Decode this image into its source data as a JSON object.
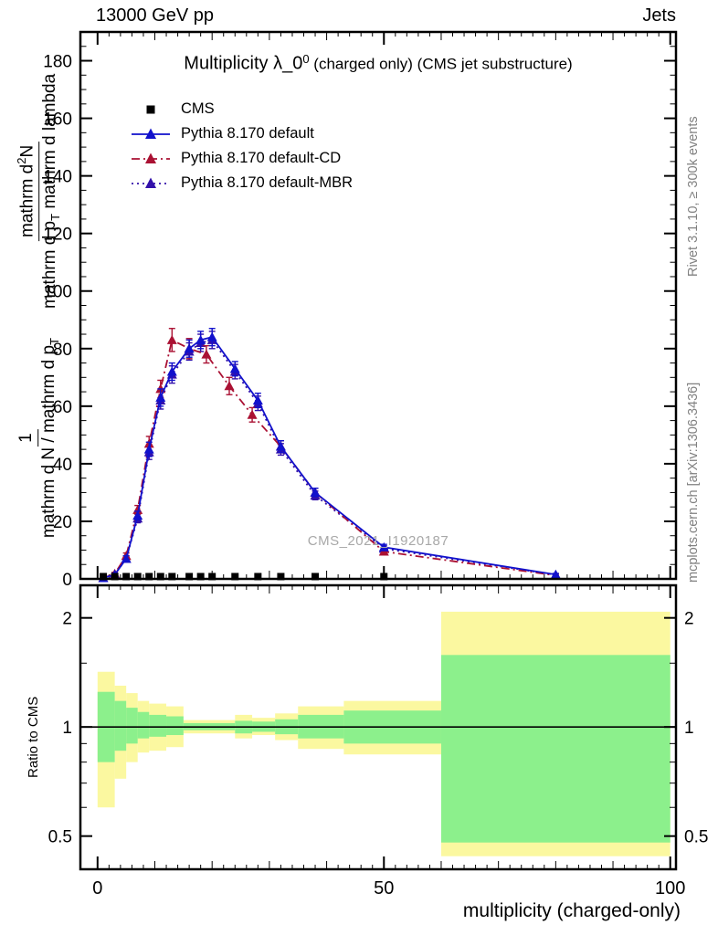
{
  "header": {
    "left_label": "13000 GeV pp",
    "right_label": "Jets"
  },
  "title": {
    "prefix": "Multiplicity λ_0",
    "sup": "0",
    "suffix": " (charged only) (CMS jet substructure)"
  },
  "watermark": "CMS_2021_I1920187",
  "side_notes": {
    "top_right": "Rivet 3.1.10, ≥ 300k events",
    "bottom_right": "mcplots.cern.ch [arXiv:1306.3436]"
  },
  "ylabel": {
    "frac1_num": "1",
    "frac1_den_main": "mathrm d N / mathrm d p",
    "frac1_den_sub": "T",
    "frac2_num_a": "mathrm d",
    "frac2_num_sup": "2",
    "frac2_num_b": "N",
    "frac2_den_a": "mathrm d p",
    "frac2_den_sub": "T",
    "frac2_den_b": " mathrm d lambda"
  },
  "axes": {
    "x_label": "multiplicity (charged-only)",
    "ratio_label": "Ratio to CMS"
  },
  "legend": [
    {
      "label": "CMS",
      "marker": "square",
      "line": null,
      "color": "#000000"
    },
    {
      "label": "Pythia 8.170 default",
      "marker": "triangle",
      "line": "solid",
      "color": "#1111cc"
    },
    {
      "label": "Pythia 8.170 default-CD",
      "marker": "triangle",
      "line": "dashdot",
      "color": "#aa1133"
    },
    {
      "label": "Pythia 8.170 default-MBR",
      "marker": "triangle",
      "line": "dotted",
      "color": "#3311aa"
    }
  ],
  "chart_data": [
    {
      "type": "line",
      "title": "Multiplicity λ_0^0 (charged only) (CMS jet substructure)",
      "xlabel": "multiplicity (charged-only)",
      "ylabel": "1/(mathrm dN/mathrm dp_T) mathrm d2N/(mathrm dp_T mathrm d lambda)",
      "xlim": [
        -3,
        101
      ],
      "ylim": [
        0,
        190
      ],
      "x_major_ticks": [
        0,
        50,
        100
      ],
      "y_major_ticks": [
        0,
        20,
        40,
        60,
        80,
        100,
        120,
        140,
        160,
        180
      ],
      "legend_position": "top-left",
      "grid": false,
      "series": [
        {
          "name": "Pythia 8.170 default-MBR",
          "marker": "triangle",
          "line": "dotted",
          "color": "#3311aa",
          "x": [
            1,
            3,
            5,
            7,
            9,
            11,
            13,
            16,
            18,
            20,
            24,
            28,
            32,
            38,
            50,
            80
          ],
          "y": [
            0.3,
            1.5,
            7,
            21,
            44,
            62,
            71,
            79,
            82,
            83,
            72,
            61,
            45,
            29,
            10.5,
            1.4
          ],
          "yerr": [
            0.2,
            0.5,
            1,
            1.5,
            2.5,
            3,
            3,
            3,
            3,
            3,
            2.5,
            2.5,
            2,
            1.5,
            1,
            0.4
          ]
        },
        {
          "name": "Pythia 8.170 default-CD",
          "marker": "triangle",
          "line": "dashdot",
          "color": "#aa1133",
          "x": [
            1,
            3,
            5,
            7,
            9,
            11,
            13,
            16,
            19,
            23,
            27,
            32,
            38,
            50,
            80
          ],
          "y": [
            0.3,
            1.8,
            8,
            24,
            47,
            66,
            83,
            80,
            78,
            67,
            57,
            46,
            30,
            9.5,
            1.2
          ],
          "yerr": [
            0.2,
            0.5,
            1,
            1.5,
            2.5,
            3,
            4,
            3.5,
            3,
            3,
            2.5,
            2,
            1.5,
            1,
            0.4
          ]
        },
        {
          "name": "Pythia 8.170 default",
          "marker": "triangle",
          "line": "solid",
          "color": "#1111cc",
          "x": [
            1,
            3,
            5,
            7,
            9,
            11,
            13,
            16,
            18,
            20,
            24,
            28,
            32,
            38,
            50,
            80
          ],
          "y": [
            0.3,
            1.5,
            7,
            22,
            45,
            63,
            72,
            80,
            83,
            84,
            73,
            62,
            46,
            30,
            11,
            1.5
          ],
          "yerr": [
            0.2,
            0.5,
            1,
            1.5,
            2.5,
            3,
            3,
            3,
            3,
            3,
            2.5,
            2.5,
            2,
            1.5,
            1,
            0.4
          ]
        },
        {
          "name": "CMS",
          "marker": "square",
          "line": null,
          "color": "#000000",
          "x": [
            1,
            3,
            5,
            7,
            9,
            11,
            13,
            16,
            18,
            20,
            24,
            28,
            32,
            38,
            50
          ],
          "y": [
            0.8,
            0.8,
            0.8,
            0.8,
            0.8,
            0.8,
            0.8,
            0.8,
            0.8,
            0.8,
            0.8,
            0.8,
            0.8,
            0.8,
            0.8
          ]
        }
      ]
    },
    {
      "type": "ratio",
      "ylabel": "Ratio to CMS",
      "yscale": "log",
      "ylim": [
        0.405,
        2.46
      ],
      "y_ticks": [
        0.5,
        1,
        2
      ],
      "y_minor_ticks": [
        0.5,
        0.6,
        0.7,
        0.8,
        0.9,
        1,
        1.5,
        2
      ],
      "reference_line": 1,
      "band_colors": {
        "outer": "#fbf8a0",
        "inner": "#8cf08c"
      },
      "bands": [
        {
          "x0": 0,
          "x1": 3,
          "outer": [
            0.6,
            1.42
          ],
          "inner": [
            0.8,
            1.25
          ]
        },
        {
          "x0": 3,
          "x1": 5,
          "outer": [
            0.72,
            1.3
          ],
          "inner": [
            0.86,
            1.18
          ]
        },
        {
          "x0": 5,
          "x1": 7,
          "outer": [
            0.8,
            1.24
          ],
          "inner": [
            0.9,
            1.13
          ]
        },
        {
          "x0": 7,
          "x1": 9,
          "outer": [
            0.85,
            1.18
          ],
          "inner": [
            0.93,
            1.1
          ]
        },
        {
          "x0": 9,
          "x1": 12,
          "outer": [
            0.86,
            1.16
          ],
          "inner": [
            0.94,
            1.08
          ]
        },
        {
          "x0": 12,
          "x1": 15,
          "outer": [
            0.88,
            1.14
          ],
          "inner": [
            0.95,
            1.07
          ]
        },
        {
          "x0": 15,
          "x1": 24,
          "outer": [
            0.96,
            1.045
          ],
          "inner": [
            0.98,
            1.025
          ]
        },
        {
          "x0": 24,
          "x1": 27,
          "outer": [
            0.93,
            1.08
          ],
          "inner": [
            0.96,
            1.04
          ]
        },
        {
          "x0": 27,
          "x1": 31,
          "outer": [
            0.95,
            1.06
          ],
          "inner": [
            0.97,
            1.035
          ]
        },
        {
          "x0": 31,
          "x1": 35,
          "outer": [
            0.92,
            1.09
          ],
          "inner": [
            0.955,
            1.05
          ]
        },
        {
          "x0": 35,
          "x1": 43,
          "outer": [
            0.87,
            1.14
          ],
          "inner": [
            0.93,
            1.08
          ]
        },
        {
          "x0": 43,
          "x1": 60,
          "outer": [
            0.84,
            1.18
          ],
          "inner": [
            0.9,
            1.11
          ]
        },
        {
          "x0": 60,
          "x1": 100,
          "outer": [
            0.44,
            2.08
          ],
          "inner": [
            0.48,
            1.58
          ]
        }
      ]
    }
  ]
}
